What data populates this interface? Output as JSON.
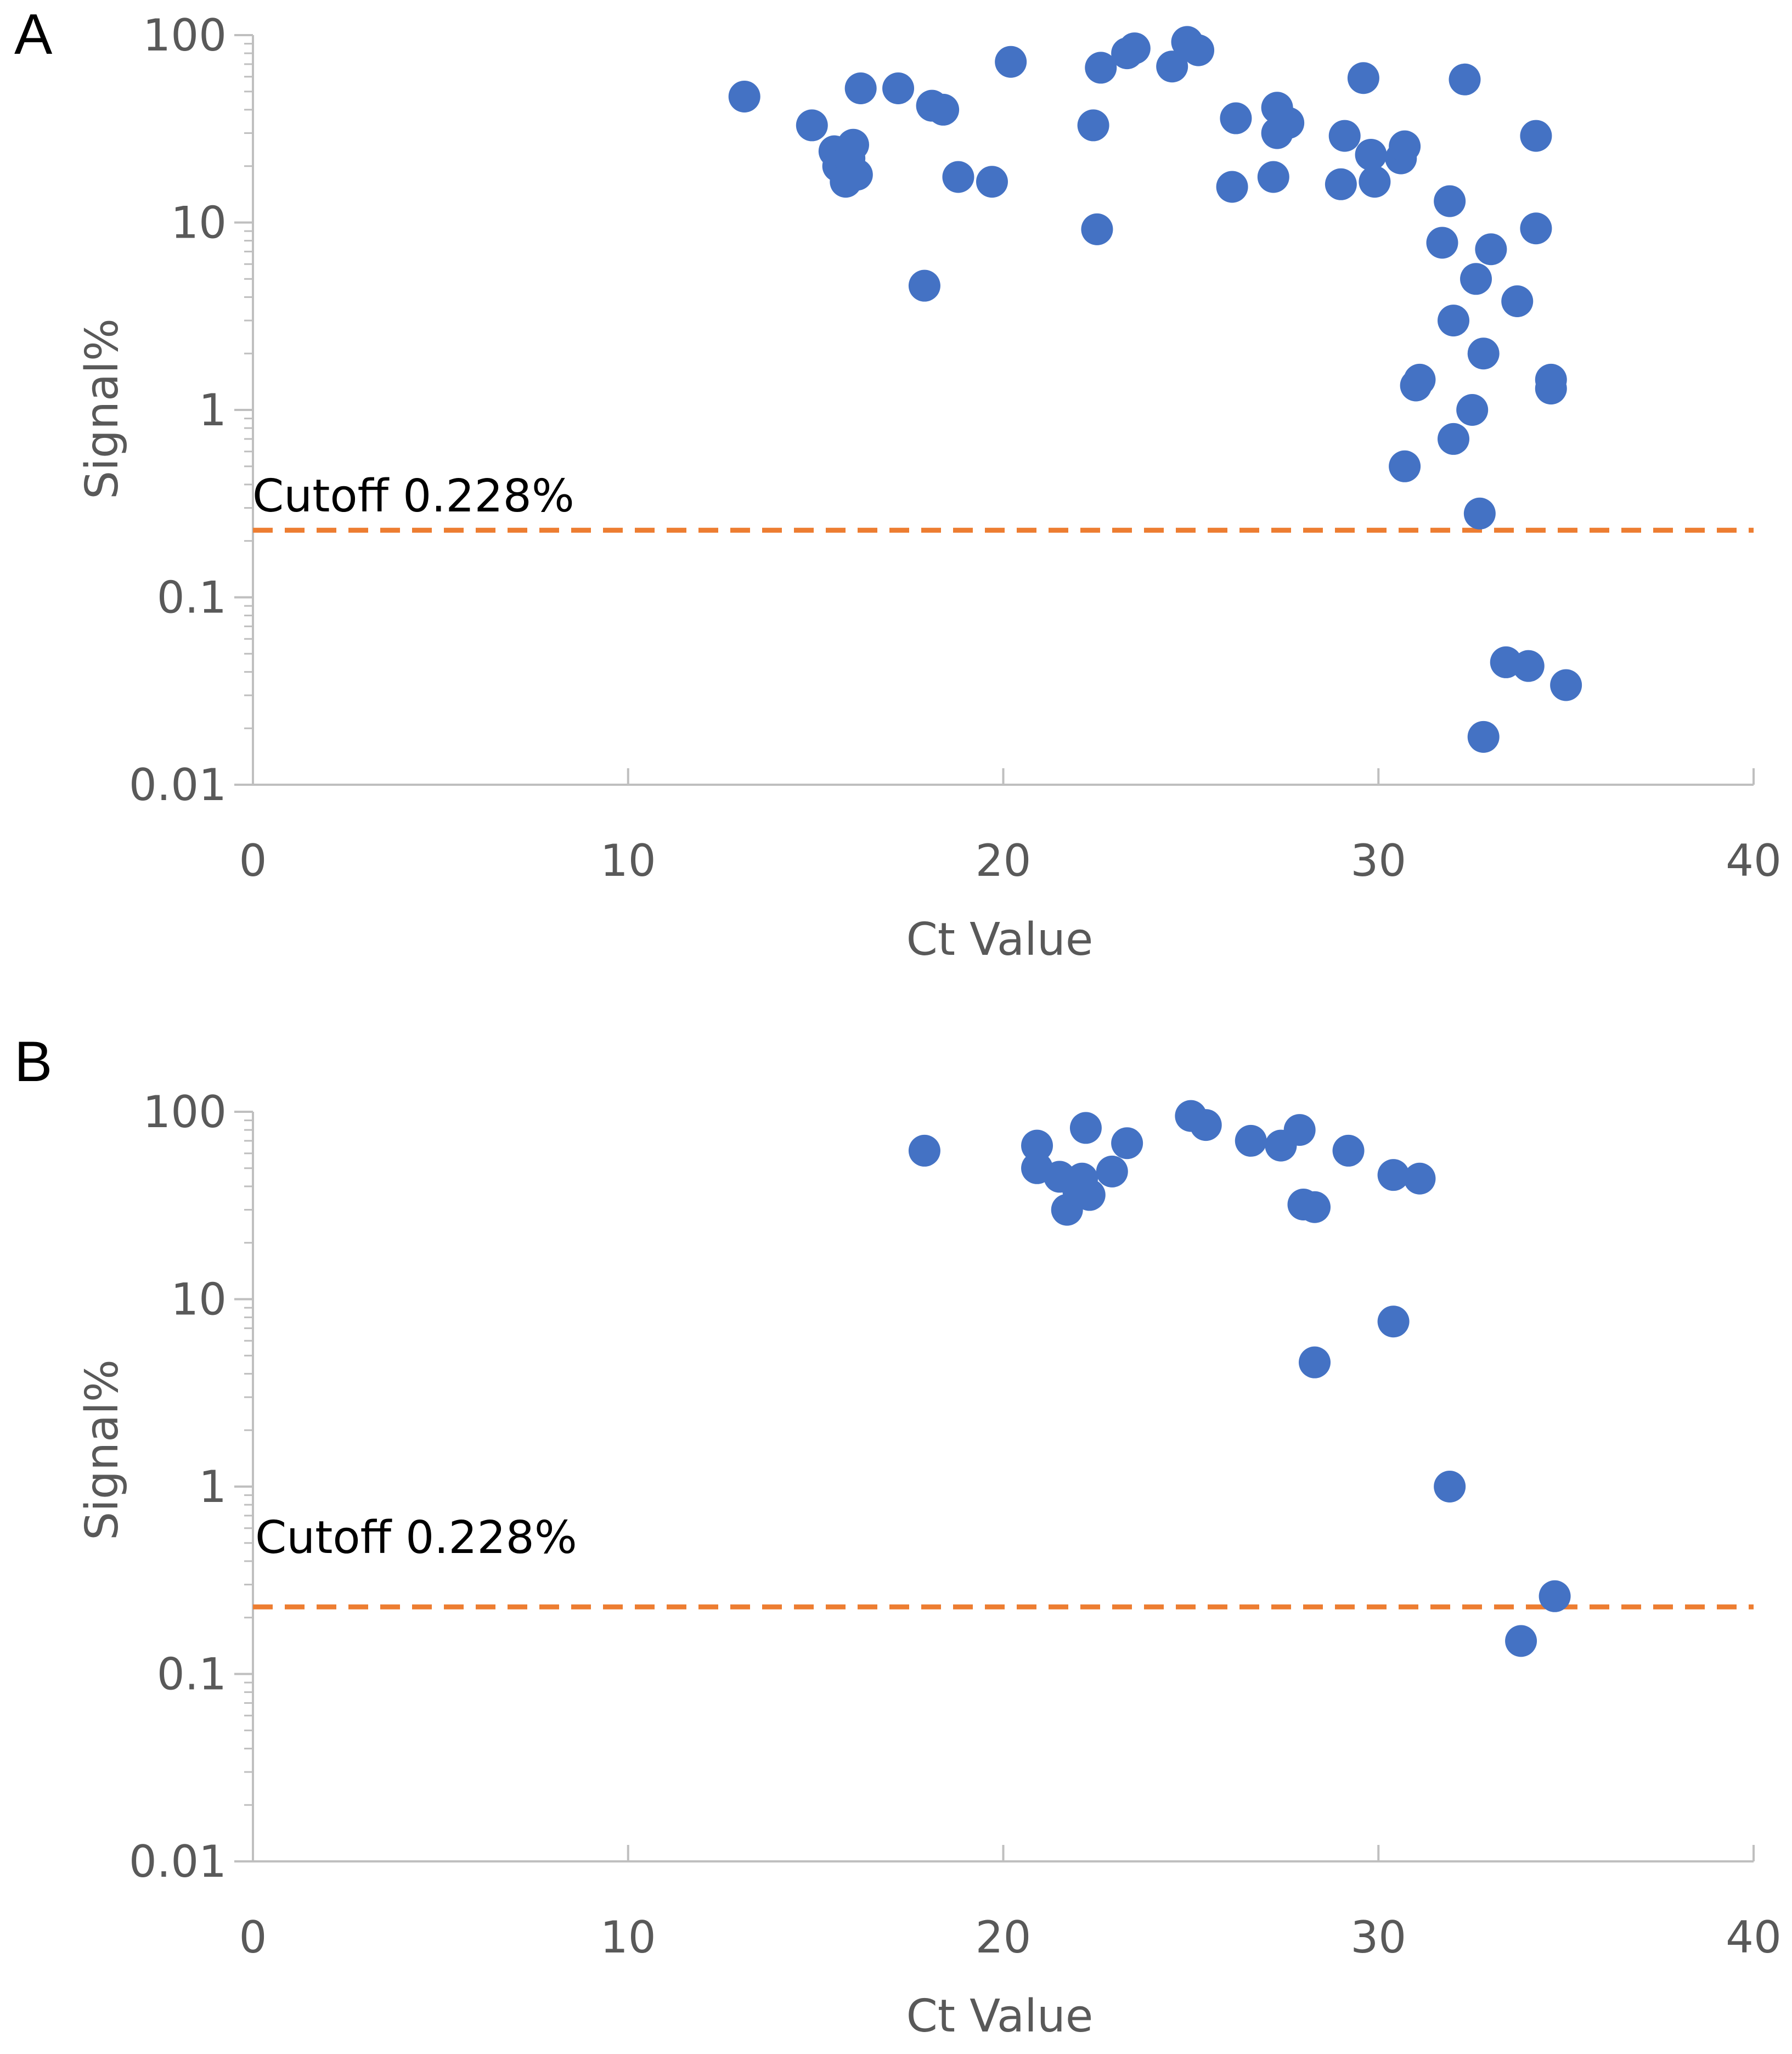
{
  "colors": {
    "marker": "#4472C4",
    "cutoff_line": "#ED7D31",
    "axis": "#BFBFBF",
    "text": "#595959"
  },
  "chart_data": [
    {
      "type": "scatter",
      "panel_label": "A",
      "xlabel": "Ct Value",
      "ylabel": "Signal%",
      "xlim": [
        0,
        40
      ],
      "ylim": [
        0.01,
        100
      ],
      "yscale": "log",
      "x_ticks": [
        "0",
        "10",
        "20",
        "30",
        "40"
      ],
      "y_ticks": [
        "0.01",
        "0.1",
        "1",
        "10",
        "100"
      ],
      "cutoff": {
        "value": 0.228,
        "label": "Cutoff 0.228%"
      },
      "points": [
        {
          "x": 13.1,
          "y": 47
        },
        {
          "x": 14.9,
          "y": 33
        },
        {
          "x": 15.5,
          "y": 24
        },
        {
          "x": 15.6,
          "y": 20
        },
        {
          "x": 15.8,
          "y": 16.5
        },
        {
          "x": 15.9,
          "y": 22
        },
        {
          "x": 16.0,
          "y": 26
        },
        {
          "x": 16.1,
          "y": 18
        },
        {
          "x": 16.2,
          "y": 52
        },
        {
          "x": 17.2,
          "y": 52
        },
        {
          "x": 17.9,
          "y": 4.6
        },
        {
          "x": 18.1,
          "y": 42
        },
        {
          "x": 18.4,
          "y": 40
        },
        {
          "x": 18.8,
          "y": 17.5
        },
        {
          "x": 19.7,
          "y": 16.5
        },
        {
          "x": 20.2,
          "y": 72
        },
        {
          "x": 22.4,
          "y": 33
        },
        {
          "x": 22.5,
          "y": 9.2
        },
        {
          "x": 22.6,
          "y": 67
        },
        {
          "x": 23.3,
          "y": 80
        },
        {
          "x": 23.5,
          "y": 85
        },
        {
          "x": 24.5,
          "y": 68
        },
        {
          "x": 24.9,
          "y": 92
        },
        {
          "x": 25.2,
          "y": 83
        },
        {
          "x": 26.1,
          "y": 15.5
        },
        {
          "x": 26.2,
          "y": 36
        },
        {
          "x": 27.2,
          "y": 17.5
        },
        {
          "x": 27.3,
          "y": 30
        },
        {
          "x": 27.3,
          "y": 41
        },
        {
          "x": 27.6,
          "y": 34
        },
        {
          "x": 29.0,
          "y": 16
        },
        {
          "x": 29.1,
          "y": 29
        },
        {
          "x": 29.6,
          "y": 59
        },
        {
          "x": 29.8,
          "y": 23
        },
        {
          "x": 29.9,
          "y": 16.5
        },
        {
          "x": 30.6,
          "y": 22
        },
        {
          "x": 30.7,
          "y": 25.5
        },
        {
          "x": 30.7,
          "y": 0.5
        },
        {
          "x": 31.0,
          "y": 1.35
        },
        {
          "x": 31.1,
          "y": 1.45
        },
        {
          "x": 31.7,
          "y": 7.8
        },
        {
          "x": 31.9,
          "y": 13
        },
        {
          "x": 32.0,
          "y": 3.0
        },
        {
          "x": 32.0,
          "y": 0.7
        },
        {
          "x": 32.3,
          "y": 58
        },
        {
          "x": 32.5,
          "y": 1.0
        },
        {
          "x": 32.6,
          "y": 5.0
        },
        {
          "x": 32.7,
          "y": 0.28
        },
        {
          "x": 32.8,
          "y": 2.0
        },
        {
          "x": 32.8,
          "y": 0.018
        },
        {
          "x": 33.0,
          "y": 7.2
        },
        {
          "x": 33.4,
          "y": 0.045
        },
        {
          "x": 33.7,
          "y": 3.8
        },
        {
          "x": 34.0,
          "y": 0.043
        },
        {
          "x": 34.2,
          "y": 29
        },
        {
          "x": 34.2,
          "y": 9.3
        },
        {
          "x": 34.6,
          "y": 1.45
        },
        {
          "x": 34.6,
          "y": 1.3
        },
        {
          "x": 35.0,
          "y": 0.034
        }
      ]
    },
    {
      "type": "scatter",
      "panel_label": "B",
      "xlabel": "Ct Value",
      "ylabel": "Signal%",
      "xlim": [
        0,
        40
      ],
      "ylim": [
        0.01,
        100
      ],
      "yscale": "log",
      "x_ticks": [
        "0",
        "10",
        "20",
        "30",
        "40"
      ],
      "y_ticks": [
        "0.01",
        "0.1",
        "1",
        "10",
        "100"
      ],
      "cutoff": {
        "value": 0.228,
        "label": "Cutoff 0.228%"
      },
      "points": [
        {
          "x": 17.9,
          "y": 62
        },
        {
          "x": 20.9,
          "y": 66
        },
        {
          "x": 20.9,
          "y": 50
        },
        {
          "x": 21.5,
          "y": 45
        },
        {
          "x": 21.7,
          "y": 30
        },
        {
          "x": 22.0,
          "y": 38
        },
        {
          "x": 22.1,
          "y": 44
        },
        {
          "x": 22.3,
          "y": 36
        },
        {
          "x": 22.2,
          "y": 82
        },
        {
          "x": 22.9,
          "y": 48
        },
        {
          "x": 23.3,
          "y": 68
        },
        {
          "x": 25.0,
          "y": 95
        },
        {
          "x": 25.4,
          "y": 85
        },
        {
          "x": 26.6,
          "y": 70
        },
        {
          "x": 27.4,
          "y": 66
        },
        {
          "x": 27.9,
          "y": 80
        },
        {
          "x": 28.0,
          "y": 32
        },
        {
          "x": 28.3,
          "y": 31
        },
        {
          "x": 28.3,
          "y": 4.6
        },
        {
          "x": 29.2,
          "y": 62
        },
        {
          "x": 30.4,
          "y": 46
        },
        {
          "x": 30.4,
          "y": 7.6
        },
        {
          "x": 31.1,
          "y": 44
        },
        {
          "x": 31.9,
          "y": 1.0
        },
        {
          "x": 33.8,
          "y": 0.15
        },
        {
          "x": 34.7,
          "y": 0.26
        }
      ]
    }
  ]
}
